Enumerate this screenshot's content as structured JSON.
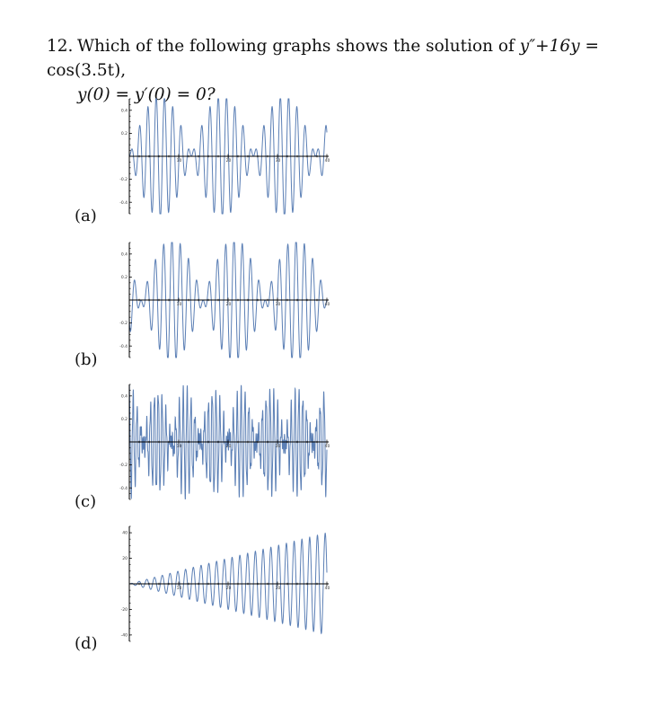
{
  "question": {
    "number": "12.",
    "line1_prefix": "Which of the following graphs shows the solution of ",
    "equation_lhs": "y″+16y",
    "equals": " = ",
    "equation_rhs": "cos(3.5t),",
    "line2": "y(0) = y′(0) = 0?"
  },
  "options": [
    {
      "label": "(a)"
    },
    {
      "label": "(b)"
    },
    {
      "label": "(c)"
    },
    {
      "label": "(d)"
    }
  ],
  "chart_data": [
    {
      "type": "line",
      "option": "(a)",
      "xlim": [
        0,
        40
      ],
      "ylim": [
        -0.5,
        0.5
      ],
      "x_ticks": [
        "10",
        "20",
        "30",
        "40"
      ],
      "y_ticks": [
        "0.4",
        "0.2",
        "-0.2",
        "-0.4"
      ],
      "y_tick_values": [
        0.4,
        0.2,
        -0.2,
        -0.4
      ],
      "function": "y(t) = (cos(3.5t) - cos(4t)) / 3.75"
    },
    {
      "type": "line",
      "option": "(b)",
      "xlim": [
        0,
        40
      ],
      "ylim": [
        -0.5,
        0.5
      ],
      "x_ticks": [
        "10",
        "20",
        "30",
        "40"
      ],
      "y_ticks": [
        "0.4",
        "0.2",
        "-0.2",
        "-0.4"
      ],
      "y_tick_values": [
        0.4,
        0.2,
        -0.2,
        -0.4
      ],
      "function": "y(t) = (cos(3.5t) - cos(4t)) / 3.75, alternate phase"
    },
    {
      "type": "line",
      "option": "(c)",
      "xlim": [
        0,
        40
      ],
      "ylim": [
        -0.5,
        0.5
      ],
      "x_ticks": [
        "10",
        "20",
        "30",
        "40"
      ],
      "y_ticks": [
        "0.4",
        "0.2",
        "-0.2",
        "-0.4"
      ],
      "y_tick_values": [
        0.4,
        0.2,
        -0.2,
        -0.4
      ],
      "function": "high-frequency beating oscillation"
    },
    {
      "type": "line",
      "option": "(d)",
      "xlim": [
        0,
        40
      ],
      "ylim": [
        -45,
        45
      ],
      "x_ticks": [
        "10",
        "20",
        "30",
        "40"
      ],
      "y_ticks": [
        "40",
        "20",
        "-20",
        "-40"
      ],
      "y_tick_values": [
        40,
        20,
        -20,
        -40
      ],
      "function": "y(t) = t sin(4t) (resonance, linearly growing amplitude)"
    }
  ]
}
